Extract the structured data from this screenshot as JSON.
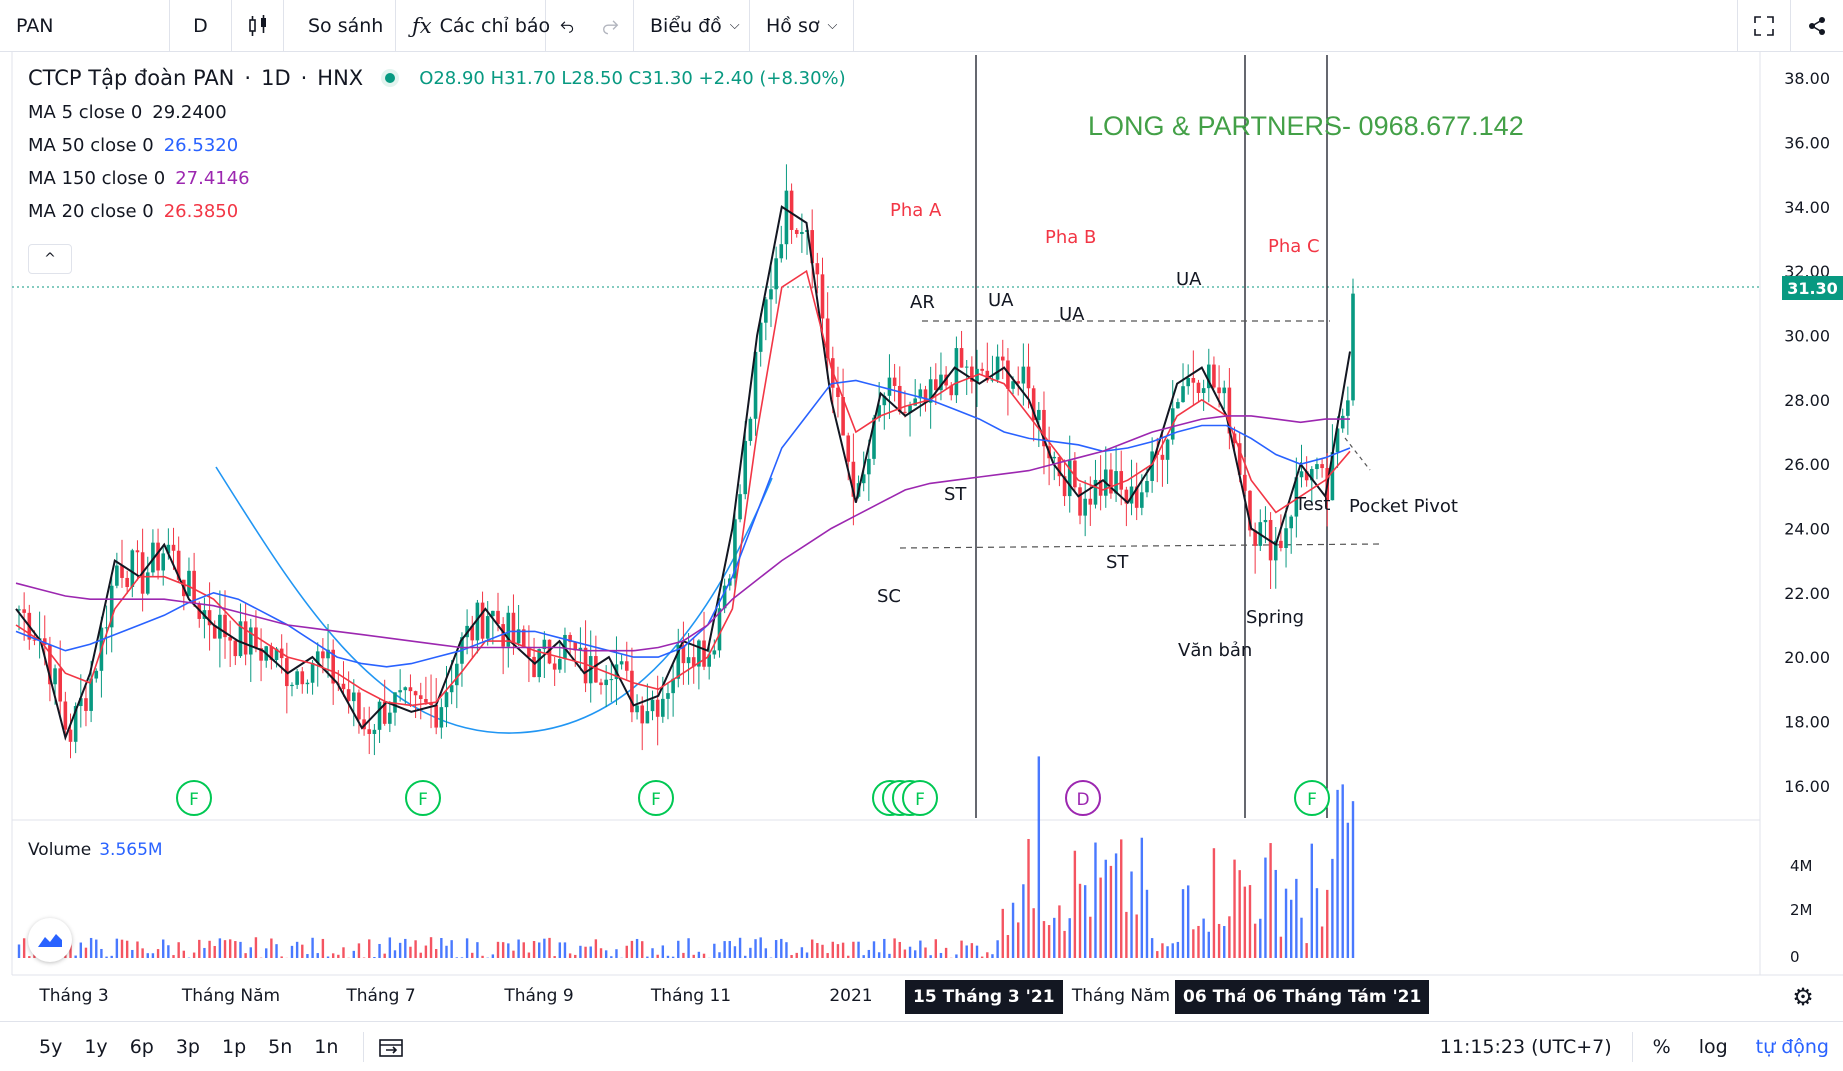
{
  "toolbar": {
    "symbol": "PAN",
    "interval": "D",
    "compare": "So sánh",
    "indicators": "Các chỉ báo",
    "chart_menu": "Biểu đồ",
    "profile_menu": "Hồ sơ"
  },
  "legend": {
    "name": "CTCP Tập đoàn PAN",
    "interval": "1D",
    "exchange": "HNX",
    "ohlc": "O28.90 H31.70 L28.50 C31.30 +2.40 (+8.30%)",
    "ma_rows": [
      {
        "label": "MA 5 close 0",
        "value": "29.2400",
        "color": "#131722"
      },
      {
        "label": "MA 50 close 0",
        "value": "26.5320",
        "color": "#2962ff"
      },
      {
        "label": "MA 150 close 0",
        "value": "27.4146",
        "color": "#9c27b0"
      },
      {
        "label": "MA 20 close 0",
        "value": "26.3850",
        "color": "#f23645"
      }
    ]
  },
  "watermark": "LONG & PARTNERS- 0968.677.142",
  "annotations": {
    "pha_a": "Pha A",
    "pha_b": "Pha B",
    "pha_c": "Pha C",
    "ar": "AR",
    "ua1": "UA",
    "ua2": "UA",
    "ua3": "UA",
    "st1": "ST",
    "st2": "ST",
    "sc": "SC",
    "test": "Test",
    "pocket_pivot": "Pocket Pivot",
    "spring": "Spring",
    "van_ban": "Văn bản"
  },
  "price_axis": [
    "38.00",
    "36.00",
    "34.00",
    "32.00",
    "30.00",
    "28.00",
    "26.00",
    "24.00",
    "22.00",
    "20.00",
    "18.00",
    "16.00"
  ],
  "last_price": "31.30",
  "volume": {
    "label": "Volume",
    "value": "3.565M",
    "axis": [
      "4M",
      "2M",
      "0"
    ]
  },
  "time_axis": [
    "Tháng 3",
    "Tháng Năm",
    "Tháng 7",
    "Tháng 9",
    "Tháng 11",
    "2021",
    "Tháng Năm"
  ],
  "date_tags": [
    "15 Tháng 3 '21",
    "06 Thár",
    "06 Tháng Tám '21"
  ],
  "event_markers": [
    "F",
    "F",
    "F",
    "F",
    "F",
    "F",
    "F",
    "D",
    "F"
  ],
  "bottom": {
    "ranges": [
      "5y",
      "1y",
      "6p",
      "3p",
      "1p",
      "5n",
      "1n"
    ],
    "clock": "11:15:23 (UTC+7)",
    "percent": "%",
    "log": "log",
    "auto": "tự động"
  },
  "colors": {
    "up": "#089981",
    "down": "#f23645",
    "ma5": "#131722",
    "ma20": "#f23645",
    "ma50": "#2962ff",
    "ma150": "#9c27b0",
    "cup": "#2196f3",
    "watermark": "#43a047",
    "phase": "#f23645"
  },
  "chart_data": {
    "type": "line",
    "series": [
      {
        "name": "MA 5 close 0",
        "values": [
          21.5,
          20.5,
          17.5,
          19.5,
          23,
          22.5,
          23.5,
          21.8,
          21,
          20.5,
          20.2,
          19.5,
          20,
          19.2,
          17.8,
          18.6,
          18.3,
          18.5,
          20.5,
          21.5,
          20.5,
          19.8,
          20.5,
          19.5,
          20,
          18.5,
          18.8,
          20.5,
          20.2,
          24,
          30,
          34,
          33.5,
          28,
          24.8,
          28.2,
          27.5,
          28,
          29,
          28.5,
          29,
          28,
          26,
          25,
          25.5,
          24.8,
          26,
          28.5,
          29,
          27.5,
          24,
          23.5,
          26,
          25,
          29.5
        ]
      },
      {
        "name": "MA 20 close 0",
        "values": [
          21,
          20.5,
          19.5,
          19.2,
          21.5,
          22.5,
          22.5,
          22.2,
          21.8,
          21,
          20.5,
          20,
          19.8,
          19.5,
          19,
          18.6,
          18.5,
          18.6,
          19.5,
          20.5,
          20.5,
          20.2,
          20,
          19.8,
          19.5,
          19.2,
          19,
          19.5,
          20,
          21.5,
          27,
          31.5,
          32,
          29,
          27,
          27.5,
          27.8,
          28,
          28.5,
          28.8,
          28.5,
          27.5,
          26.5,
          25.5,
          25.2,
          25.5,
          26,
          27.5,
          28,
          27.5,
          25.5,
          24.5,
          25,
          25.5,
          26.4
        ]
      },
      {
        "name": "MA 50 close 0",
        "values": [
          20.8,
          20.5,
          20.2,
          20.4,
          20.7,
          21,
          21.3,
          21.7,
          22,
          21.8,
          21.4,
          21,
          20.5,
          20,
          19.8,
          19.7,
          19.8,
          20,
          20.2,
          20.5,
          20.8,
          20.8,
          20.6,
          20.4,
          20.2,
          20,
          20,
          20.3,
          21,
          22.5,
          24.5,
          26.5,
          27.5,
          28.5,
          28.6,
          28.4,
          28.2,
          28,
          27.7,
          27.4,
          27,
          26.8,
          26.7,
          26.6,
          26.4,
          26.5,
          26.7,
          27,
          27.2,
          27.2,
          26.8,
          26.3,
          26,
          26.2,
          26.5
        ]
      },
      {
        "name": "MA 150 close 0",
        "values": [
          22.3,
          22.1,
          21.9,
          21.8,
          21.8,
          21.8,
          21.8,
          21.7,
          21.6,
          21.4,
          21.2,
          21,
          20.9,
          20.8,
          20.7,
          20.6,
          20.5,
          20.4,
          20.3,
          20.3,
          20.3,
          20.3,
          20.3,
          20.2,
          20.2,
          20.2,
          20.3,
          20.5,
          21,
          21.8,
          22.4,
          23,
          23.5,
          24,
          24.4,
          24.8,
          25.2,
          25.4,
          25.5,
          25.6,
          25.7,
          25.8,
          26,
          26.2,
          26.4,
          26.7,
          27,
          27.2,
          27.4,
          27.5,
          27.5,
          27.4,
          27.3,
          27.4,
          27.4
        ]
      }
    ],
    "ylim": [
      15,
      38.5
    ]
  }
}
